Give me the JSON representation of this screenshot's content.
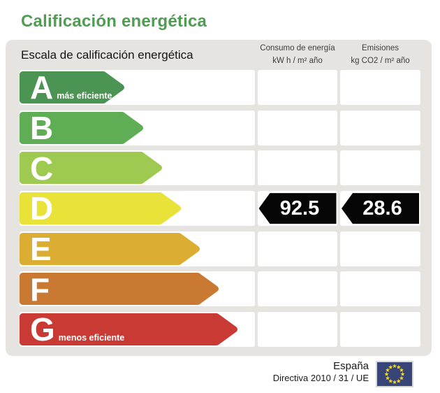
{
  "title": "Calificación energética",
  "title_color": "#4f9c52",
  "scale": {
    "header": "Escala de calificación energética",
    "columns": [
      {
        "line1": "Consumo de energía",
        "line2": "kW h / m² año"
      },
      {
        "line1": "Emisiones",
        "line2": "kg CO2 / m² año"
      }
    ],
    "rows": [
      {
        "letter": "A",
        "note": "más eficiente",
        "color": "#4c9454",
        "arrow_width": 150
      },
      {
        "letter": "B",
        "note": "",
        "color": "#5fae55",
        "arrow_width": 177
      },
      {
        "letter": "C",
        "note": "",
        "color": "#9fca51",
        "arrow_width": 204
      },
      {
        "letter": "D",
        "note": "",
        "color": "#e9e339",
        "arrow_width": 231
      },
      {
        "letter": "E",
        "note": "",
        "color": "#dbad33",
        "arrow_width": 258
      },
      {
        "letter": "F",
        "note": "",
        "color": "#c97931",
        "arrow_width": 285
      },
      {
        "letter": "G",
        "note": "menos eficiente",
        "color": "#c93a34",
        "arrow_width": 312
      }
    ]
  },
  "rating": {
    "letter": "D",
    "consumo": "92.5",
    "emisiones": "28.6",
    "badge_color": "#050505"
  },
  "footer": {
    "country": "España",
    "directive": "Directiva 2010 / 31 / UE",
    "flag_color": "#364478",
    "flag_star_color": "#f0d43c"
  },
  "chart_data": {
    "type": "bar",
    "title": "Calificación energética - Escala de calificación energética",
    "categories": [
      "A",
      "B",
      "C",
      "D",
      "E",
      "F",
      "G"
    ],
    "category_notes": {
      "A": "más eficiente",
      "G": "menos eficiente"
    },
    "bar_colors": [
      "#4c9454",
      "#5fae55",
      "#9fca51",
      "#e9e339",
      "#dbad33",
      "#c97931",
      "#c93a34"
    ],
    "relative_bar_lengths": [
      150,
      177,
      204,
      231,
      258,
      285,
      312
    ],
    "series": [
      {
        "name": "Consumo de energía (kW h / m² año)",
        "rated_class": "D",
        "value": 92.5
      },
      {
        "name": "Emisiones (kg CO2 / m² año)",
        "rated_class": "D",
        "value": 28.6
      }
    ],
    "legend_position": "none",
    "grid": false
  }
}
